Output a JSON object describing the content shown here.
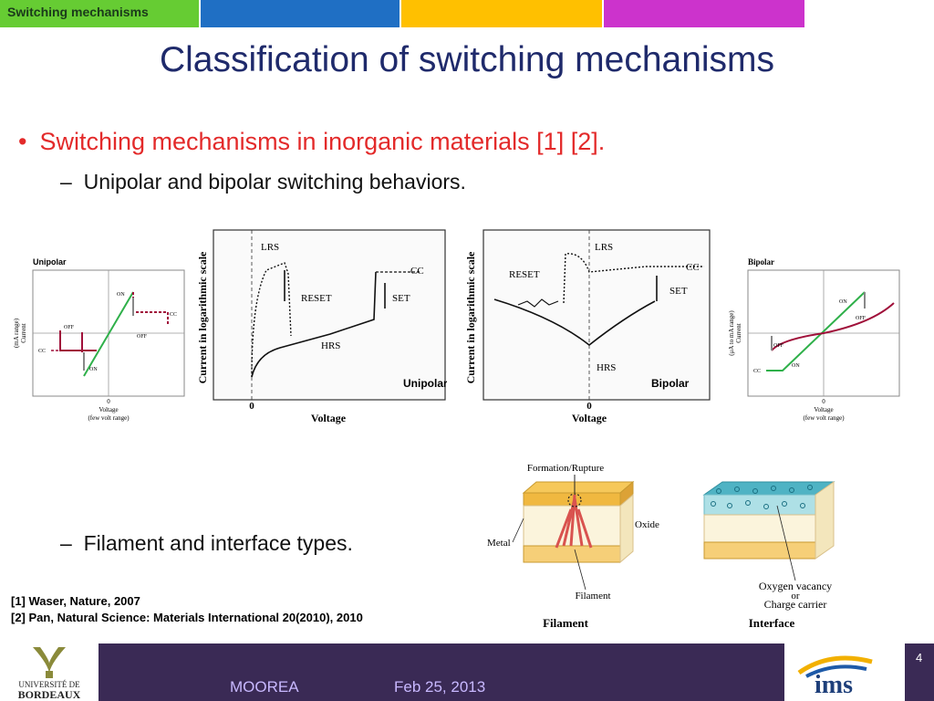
{
  "header": {
    "section_tab": "Switching mechanisms",
    "tab_colors": [
      "#66cc33",
      "#1f6fc4",
      "#ffc000",
      "#cc33cc"
    ]
  },
  "title": "Classification of switching mechanisms",
  "bullets": {
    "main": "Switching mechanisms in inorganic materials [1] [2].",
    "sub1": "Unipolar and bipolar switching behaviors.",
    "sub2": "Filament and interface types."
  },
  "figures": {
    "unipolar_iv": {
      "title": "Unipolar",
      "ylabel_1": "Current",
      "ylabel_2": "(mA range)",
      "xlabel_1": "Voltage",
      "xlabel_2": "(few volt range)",
      "zero": "0",
      "on_top": "ON",
      "cc_right": "CC",
      "off_right": "OFF",
      "off_left": "OFF",
      "cc_left": "CC",
      "on_bottom": "ON"
    },
    "unipolar_log": {
      "ylabel": "Current in logarithmic scale",
      "xlabel": "Voltage",
      "zero": "0",
      "lrs": "LRS",
      "reset": "RESET",
      "hrs": "HRS",
      "cc": "CC",
      "set": "SET",
      "caption": "Unipolar"
    },
    "bipolar_log": {
      "ylabel": "Current in logarithmic scale",
      "xlabel": "Voltage",
      "zero": "0",
      "lrs": "LRS",
      "reset": "RESET",
      "hrs": "HRS",
      "cc": "CC",
      "set": "SET",
      "caption": "Bipolar"
    },
    "bipolar_iv": {
      "title": "Bipolar",
      "ylabel_1": "Current",
      "ylabel_2": "(μA to mA range)",
      "xlabel_1": "Voltage",
      "xlabel_2": "(few volt range)",
      "zero": "0",
      "on_top": "ON",
      "off_top": "OFF",
      "off_left": "OFF",
      "cc_left": "CC",
      "on_bottom": "ON"
    },
    "filament": {
      "top_label": "Formation/Rupture",
      "metal": "Metal",
      "oxide": "Oxide",
      "filament": "Filament",
      "caption": "Filament"
    },
    "interface": {
      "label_1": "Oxygen vacancy",
      "label_2": "or",
      "label_3": "Charge carrier",
      "caption": "Interface"
    }
  },
  "references": {
    "ref1": "[1] Waser, Nature, 2007",
    "ref2": "[2] Pan, Natural Science: Materials International 20(2010), 2010"
  },
  "footer": {
    "logo_text_1": "UNIVERSITÉ DE",
    "logo_text_2": "BORDEAUX",
    "project": "MOOREA",
    "date": "Feb 25, 2013",
    "page_number": "4",
    "ims_logo": "ims"
  }
}
